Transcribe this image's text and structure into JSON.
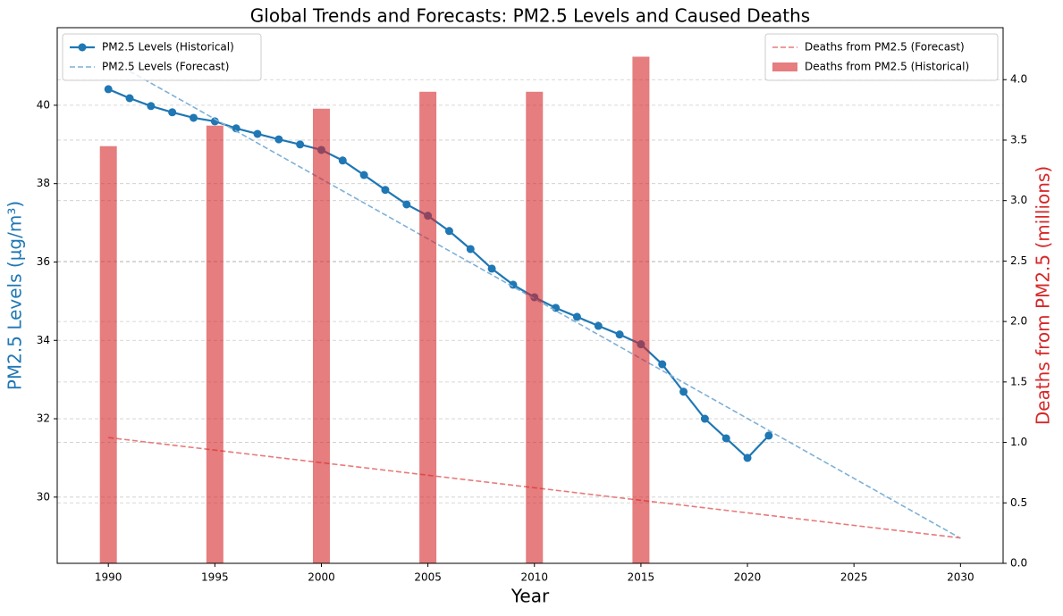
{
  "chart_data": {
    "type": "line",
    "title": "Global Trends and Forecasts: PM2.5 Levels and Caused Deaths",
    "xlabel": "Year",
    "ylabel": "PM2.5 Levels (µg/m³)",
    "y2label": "Deaths from PM2.5 (millions)",
    "ylabel_color": "#1f77b4",
    "y2label_color": "#d62728",
    "xlim": [
      1987.6,
      2032.0
    ],
    "xticks": [
      1990,
      1995,
      2000,
      2005,
      2010,
      2015,
      2020,
      2025,
      2030
    ],
    "ylim": [
      28.31,
      41.98
    ],
    "yticks": [
      30,
      32,
      34,
      36,
      38,
      40
    ],
    "y2lim": [
      0,
      4.43
    ],
    "y2ticks": [
      {
        "value": 0,
        "label": "0.0"
      },
      0.5,
      {
        "value": 1,
        "label": "1.0"
      },
      1.5,
      {
        "value": 2,
        "label": "2.0"
      },
      2.5,
      {
        "value": 3,
        "label": "3.0"
      },
      3.5,
      {
        "value": 4,
        "label": "4.0"
      }
    ],
    "grid": true,
    "series": [
      {
        "name": "PM2.5 Levels (Historical)",
        "type": "line",
        "color": "#1f77b4",
        "dashed": false,
        "markers": true,
        "legend": "upper left",
        "x": [
          1990,
          1991,
          1992,
          1993,
          1994,
          1995,
          1996,
          1997,
          1998,
          1999,
          2000,
          2001,
          2002,
          2003,
          2004,
          2005,
          2006,
          2007,
          2008,
          2009,
          2010,
          2011,
          2012,
          2013,
          2014,
          2015,
          2016,
          2017,
          2018,
          2019,
          2020,
          2021
        ],
        "values": [
          40.41,
          40.18,
          39.98,
          39.82,
          39.68,
          39.59,
          39.41,
          39.27,
          39.13,
          39.0,
          38.86,
          38.59,
          38.22,
          37.84,
          37.47,
          37.18,
          36.79,
          36.33,
          35.83,
          35.42,
          35.1,
          34.83,
          34.6,
          34.37,
          34.15,
          33.9,
          33.39,
          32.69,
          32.0,
          31.5,
          31.0,
          31.57
        ]
      },
      {
        "name": "PM2.5 Levels (Forecast)",
        "type": "line",
        "color": "#7fb0d6",
        "dashed": true,
        "markers": false,
        "legend": "upper left",
        "x": [
          1991,
          2030
        ],
        "values": [
          40.87,
          28.95
        ]
      },
      {
        "name": "Deaths from PM2.5 (Forecast)",
        "type": "line",
        "color": "#e87a7a",
        "dashed": true,
        "markers": false,
        "legend": "upper right",
        "axis": "y2",
        "x": [
          1990,
          2030
        ],
        "values": [
          1.04,
          0.21
        ]
      },
      {
        "name": "Deaths from PM2.5 (Historical)",
        "type": "bar",
        "color": "#d62728",
        "opacity": 0.6,
        "legend": "upper right",
        "axis": "y2",
        "x": [
          1990,
          1995,
          2000,
          2005,
          2010,
          2015
        ],
        "values": [
          3.45,
          3.62,
          3.76,
          3.9,
          3.9,
          4.19
        ]
      }
    ]
  }
}
